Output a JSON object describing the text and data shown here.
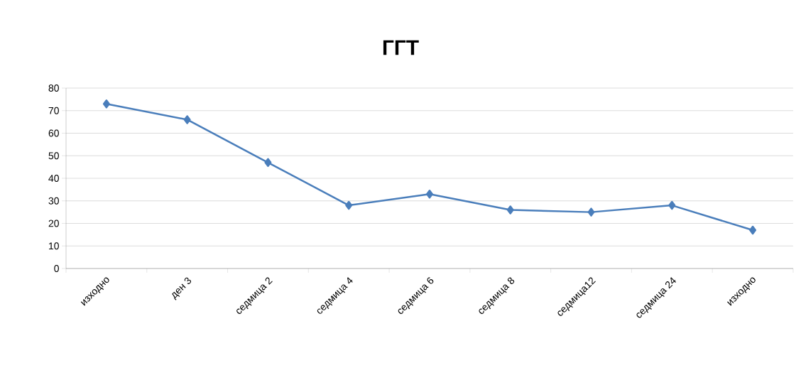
{
  "chart_data": {
    "type": "line",
    "title": "ГГТ",
    "categories": [
      "изходно",
      "ден 3",
      "седмица 2",
      "седмица 4",
      "седмица 6",
      "седмица 8",
      "седмица12",
      "седмица 24",
      "изходно"
    ],
    "values": [
      73,
      66,
      47,
      28,
      33,
      26,
      25,
      28,
      17
    ],
    "color": "#4a7ebb",
    "marker": "diamond",
    "line_style": "solid",
    "ylim": [
      0,
      80
    ],
    "yticks": [
      0,
      10,
      20,
      30,
      40,
      50,
      60,
      70,
      80
    ],
    "grid": "y"
  }
}
